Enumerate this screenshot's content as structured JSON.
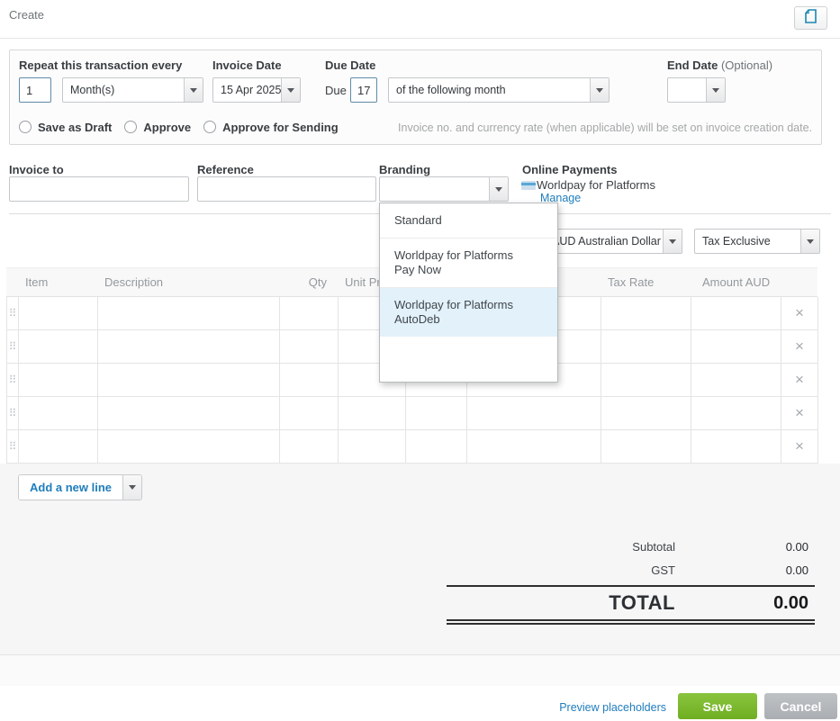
{
  "page": {
    "title": "Create"
  },
  "schedule": {
    "repeat_label": "Repeat this transaction every",
    "repeat_count": "1",
    "repeat_period": "Month(s)",
    "invoice_date_label": "Invoice Date",
    "invoice_date": "15 Apr 2025",
    "due_date_label": "Due Date",
    "due_prefix": "Due",
    "due_day": "17",
    "due_rule": "of the following month",
    "end_date_label": "End Date",
    "end_date_hint": "(Optional)",
    "end_date": "",
    "radio_options": [
      {
        "label": "Save as Draft",
        "selected": false
      },
      {
        "label": "Approve",
        "selected": false
      },
      {
        "label": "Approve for Sending",
        "selected": false
      }
    ],
    "note": "Invoice no. and currency rate (when applicable) will be set on invoice creation date."
  },
  "details": {
    "invoice_to_label": "Invoice to",
    "invoice_to_value": "",
    "reference_label": "Reference",
    "reference_value": "",
    "branding_label": "Branding",
    "branding_value": "",
    "online_payments_label": "Online Payments",
    "online_payments_provider": "Worldpay for Platforms",
    "manage_link": "Manage"
  },
  "branding_dropdown": {
    "options": [
      {
        "label": "Standard",
        "highlighted": false
      },
      {
        "label": "Worldpay for Platforms Pay Now",
        "highlighted": false
      },
      {
        "label": "Worldpay for Platforms AutoDeb",
        "highlighted": true
      }
    ]
  },
  "currency": {
    "value": "AUD Australian Dollar"
  },
  "tax": {
    "value": "Tax Exclusive"
  },
  "line_items": {
    "columns": [
      "Item",
      "Description",
      "Qty",
      "Unit Price",
      "",
      "",
      "Tax Rate",
      "Amount AUD"
    ],
    "row_count": 5
  },
  "icons": {
    "drag_handle": "⠿",
    "delete_row": "×"
  },
  "actions": {
    "add_line_label": "Add a new line"
  },
  "totals": {
    "subtotal_label": "Subtotal",
    "subtotal": "0.00",
    "gst_label": "GST",
    "gst": "0.00",
    "total_label": "TOTAL",
    "total": "0.00"
  },
  "footer": {
    "preview_link": "Preview placeholders",
    "save_label": "Save",
    "cancel_label": "Cancel"
  },
  "colors": {
    "link_blue": "#1f7dbd",
    "save_green": "#7db52f",
    "cancel_gray": "#b4b8bb",
    "dropdown_highlight": "#e2f1fa"
  }
}
